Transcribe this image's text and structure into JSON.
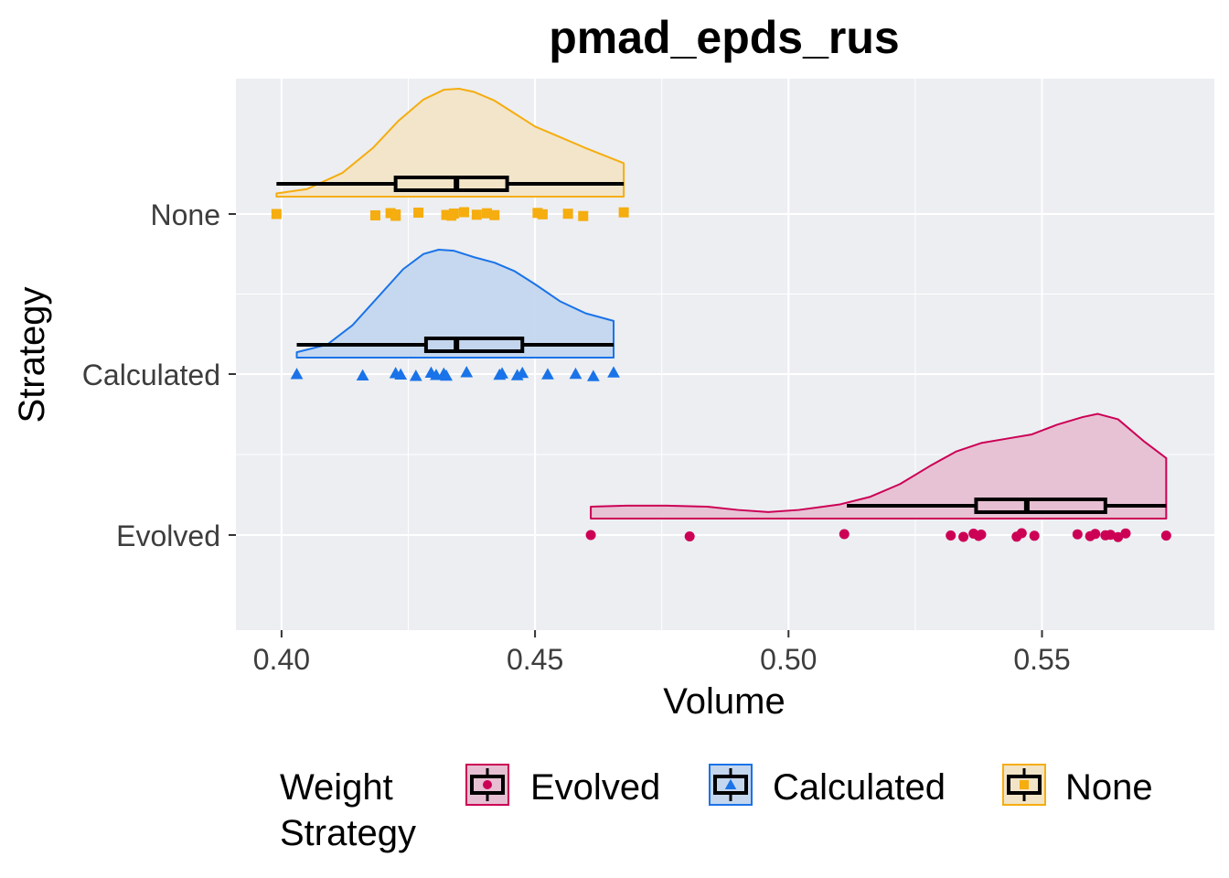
{
  "chart_data": {
    "type": "raincloud",
    "title": "pmad_epds_rus",
    "xlabel": "Volume",
    "ylabel": "Strategy",
    "xlim": [
      0.391,
      0.584
    ],
    "x_ticks": [
      0.4,
      0.45,
      0.5,
      0.55
    ],
    "x_tick_labels": [
      "0.40",
      "0.45",
      "0.50",
      "0.55"
    ],
    "categories": [
      "None",
      "Calculated",
      "Evolved"
    ],
    "grid": true,
    "legend": {
      "title_line1": "Weight",
      "title_line2": "Strategy",
      "placement": "bottom",
      "entries": [
        "Evolved",
        "Calculated",
        "None"
      ]
    },
    "series": [
      {
        "name": "None",
        "color": "#f5ad0f",
        "fill": "#f2e4c7",
        "marker": "square",
        "points": [
          0.399,
          0.4185,
          0.4215,
          0.4225,
          0.4225,
          0.427,
          0.4325,
          0.434,
          0.4335,
          0.436,
          0.4385,
          0.4405,
          0.442,
          0.4505,
          0.4515,
          0.4565,
          0.4595,
          0.4675
        ],
        "box": {
          "min": 0.399,
          "q1": 0.4225,
          "median": 0.4345,
          "q3": 0.4445,
          "max": 0.4675
        },
        "density": [
          [
            0.399,
            0.03
          ],
          [
            0.405,
            0.07
          ],
          [
            0.412,
            0.22
          ],
          [
            0.418,
            0.45
          ],
          [
            0.423,
            0.7
          ],
          [
            0.428,
            0.9
          ],
          [
            0.432,
            0.99
          ],
          [
            0.435,
            1.0
          ],
          [
            0.438,
            0.97
          ],
          [
            0.442,
            0.89
          ],
          [
            0.446,
            0.77
          ],
          [
            0.45,
            0.65
          ],
          [
            0.455,
            0.55
          ],
          [
            0.46,
            0.45
          ],
          [
            0.4675,
            0.31
          ]
        ]
      },
      {
        "name": "Calculated",
        "color": "#1a73e8",
        "fill": "#c4d6ee",
        "marker": "triangle",
        "points": [
          0.403,
          0.416,
          0.4225,
          0.4235,
          0.4265,
          0.4295,
          0.4305,
          0.432,
          0.4325,
          0.4365,
          0.443,
          0.4435,
          0.4465,
          0.4475,
          0.4525,
          0.458,
          0.4615,
          0.4655
        ],
        "box": {
          "min": 0.403,
          "q1": 0.4285,
          "median": 0.4345,
          "q3": 0.4475,
          "max": 0.4655
        },
        "density": [
          [
            0.403,
            0.05
          ],
          [
            0.409,
            0.12
          ],
          [
            0.414,
            0.3
          ],
          [
            0.419,
            0.56
          ],
          [
            0.424,
            0.82
          ],
          [
            0.428,
            0.96
          ],
          [
            0.431,
            1.0
          ],
          [
            0.434,
            0.99
          ],
          [
            0.438,
            0.93
          ],
          [
            0.442,
            0.88
          ],
          [
            0.446,
            0.8
          ],
          [
            0.45,
            0.68
          ],
          [
            0.455,
            0.52
          ],
          [
            0.46,
            0.41
          ],
          [
            0.4655,
            0.34
          ]
        ]
      },
      {
        "name": "Evolved",
        "color": "#cc0055",
        "fill": "#e7bfd2",
        "marker": "circle",
        "points": [
          0.461,
          0.4805,
          0.511,
          0.532,
          0.5345,
          0.5365,
          0.5375,
          0.538,
          0.545,
          0.546,
          0.5485,
          0.557,
          0.5595,
          0.5605,
          0.5625,
          0.5635,
          0.565,
          0.5665,
          0.5745
        ],
        "box": {
          "min": 0.5115,
          "q1": 0.537,
          "median": 0.547,
          "q3": 0.5625,
          "max": 0.5745
        },
        "density": [
          [
            0.461,
            0.11
          ],
          [
            0.468,
            0.12
          ],
          [
            0.476,
            0.12
          ],
          [
            0.484,
            0.11
          ],
          [
            0.49,
            0.08
          ],
          [
            0.496,
            0.06
          ],
          [
            0.502,
            0.08
          ],
          [
            0.51,
            0.13
          ],
          [
            0.516,
            0.2
          ],
          [
            0.522,
            0.32
          ],
          [
            0.528,
            0.49
          ],
          [
            0.533,
            0.62
          ],
          [
            0.538,
            0.7
          ],
          [
            0.543,
            0.74
          ],
          [
            0.548,
            0.78
          ],
          [
            0.553,
            0.87
          ],
          [
            0.558,
            0.94
          ],
          [
            0.561,
            0.97
          ],
          [
            0.565,
            0.92
          ],
          [
            0.57,
            0.72
          ],
          [
            0.5745,
            0.56
          ]
        ]
      }
    ]
  }
}
